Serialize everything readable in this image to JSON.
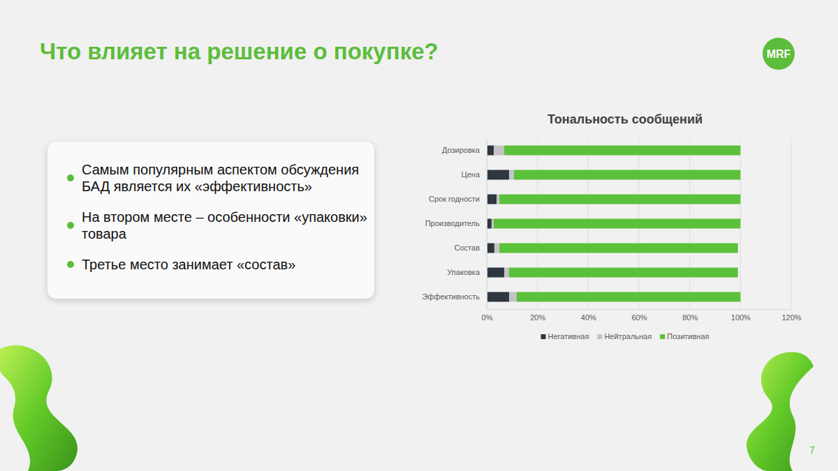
{
  "slide": {
    "title": "Что влияет на решение о покупке?",
    "bullets": [
      "Самым популярным аспектом обсуждения БАД является их «эффективность»",
      "На втором месте – особенности «упаковки» товара",
      "Третье место занимает «состав»"
    ],
    "logo": "MRF",
    "page_number": 7
  },
  "chart_data": {
    "type": "bar",
    "title": "Тональность сообщений",
    "orientation": "horizontal",
    "stacked": true,
    "categories": [
      "Дозировка",
      "Цена",
      "Срок годности",
      "Производитель",
      "Состав",
      "Упаковка",
      "Эффективность"
    ],
    "series": [
      {
        "name": "Негативная",
        "color": "#2e3640",
        "values": [
          2.8,
          8.8,
          3.9,
          1.9,
          3.0,
          6.9,
          8.8
        ]
      },
      {
        "name": "Нейтральная",
        "color": "#c3c3c3",
        "values": [
          4.1,
          1.9,
          1.1,
          0.8,
          2.0,
          1.9,
          3.0
        ]
      },
      {
        "name": "Позитивная",
        "color": "#5cc13a",
        "values": [
          93.1,
          89.3,
          95.0,
          97.3,
          94.0,
          90.2,
          88.2
        ]
      }
    ],
    "xlim": [
      0,
      120
    ],
    "xticks": [
      {
        "value": 0,
        "label": "0%"
      },
      {
        "value": 20,
        "label": "20%"
      },
      {
        "value": 40,
        "label": "40%"
      },
      {
        "value": 60,
        "label": "60%"
      },
      {
        "value": 80,
        "label": "80%"
      },
      {
        "value": 100,
        "label": "100%"
      },
      {
        "value": 120,
        "label": "120%"
      }
    ],
    "grid": true,
    "legend": "bottom"
  }
}
